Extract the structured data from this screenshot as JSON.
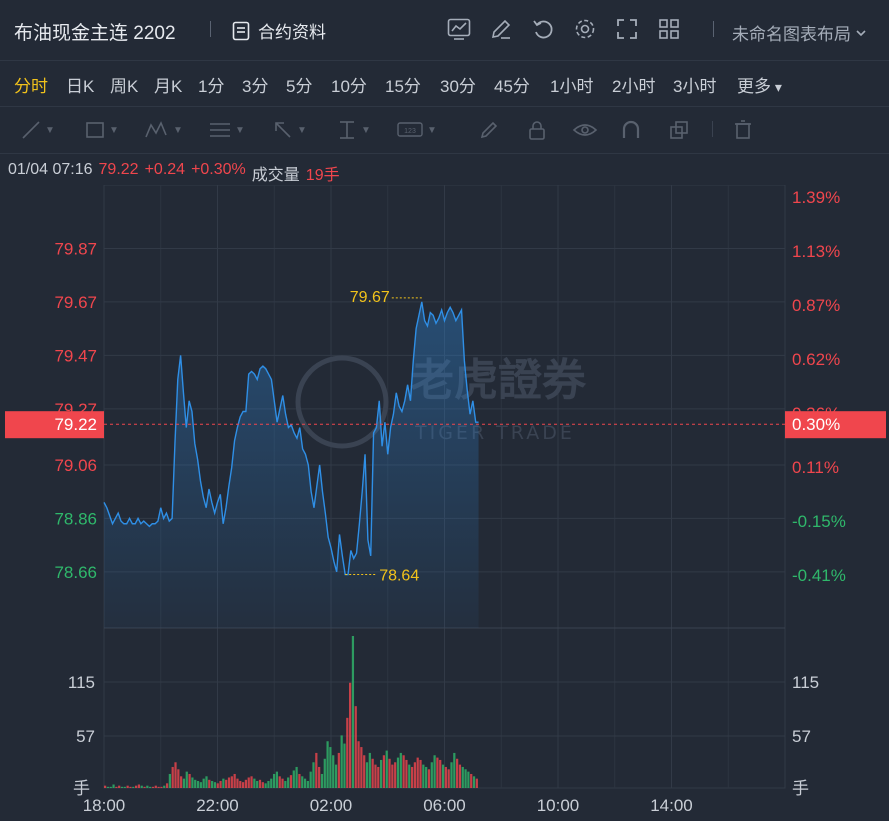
{
  "header": {
    "instrument_title": "布油现金主连 2202",
    "contract_info": "合约资料",
    "layout_name": "未命名图表布局"
  },
  "periods": [
    {
      "label": "分时",
      "active": true
    },
    {
      "label": "日K",
      "active": false
    },
    {
      "label": "周K",
      "active": false
    },
    {
      "label": "月K",
      "active": false
    },
    {
      "label": "1分",
      "active": false
    },
    {
      "label": "3分",
      "active": false
    },
    {
      "label": "5分",
      "active": false
    },
    {
      "label": "10分",
      "active": false
    },
    {
      "label": "15分",
      "active": false
    },
    {
      "label": "30分",
      "active": false
    },
    {
      "label": "45分",
      "active": false
    },
    {
      "label": "1小时",
      "active": false
    },
    {
      "label": "2小时",
      "active": false
    },
    {
      "label": "3小时",
      "active": false
    },
    {
      "label": "更多",
      "active": false
    }
  ],
  "info": {
    "datetime": "01/04 07:16",
    "price": "79.22",
    "change": "+0.24",
    "change_pct": "+0.30%",
    "volume_label": "成交量",
    "volume": "19手"
  },
  "watermark": {
    "cn": "老虎證券",
    "en": "TIGER TRADE"
  },
  "colors": {
    "up": "#f0464d",
    "down": "#2fb86b",
    "line": "#2f8fe6",
    "marker": "#f1c21b",
    "bg": "#232a36"
  },
  "chart_data": {
    "type": "line",
    "left_axis": {
      "ticks": [
        "79.87",
        "79.67",
        "79.47",
        "79.27",
        "79.06",
        "78.86",
        "78.66"
      ]
    },
    "right_axis": {
      "ticks": [
        "1.39%",
        "1.13%",
        "0.87%",
        "0.62%",
        "0.36%",
        "0.11%",
        "-0.15%",
        "-0.41%"
      ]
    },
    "x_ticks": [
      "18:00",
      "22:00",
      "02:00",
      "06:00",
      "10:00",
      "14:00"
    ],
    "price_tag_left": "79.22",
    "price_tag_right": "0.30%",
    "high_label": "79.67",
    "low_label": "78.64",
    "volume_axis": {
      "ticks": [
        "115",
        "57"
      ],
      "unit": "手"
    },
    "ylim": [
      78.45,
      80.07
    ],
    "prev_close": 78.98,
    "series": [
      {
        "x": [
          0,
          0.1,
          0.2,
          0.3,
          0.4,
          0.5,
          0.6,
          0.7,
          0.8,
          0.9,
          1.0,
          1.1,
          1.2,
          1.3,
          1.4,
          1.5,
          1.6,
          1.7,
          1.8,
          1.9,
          2.0,
          2.1,
          2.2,
          2.3,
          2.4,
          2.5,
          2.6,
          2.7,
          2.8,
          2.9,
          3.0,
          3.1,
          3.2,
          3.3,
          3.4,
          3.5,
          3.6,
          3.7,
          3.8,
          3.9,
          4.0,
          4.1,
          4.2,
          4.3,
          4.4,
          4.5,
          4.6,
          4.7,
          4.8,
          4.9,
          5.0,
          5.1,
          5.2,
          5.3,
          5.4,
          5.5,
          5.6,
          5.7,
          5.8,
          5.9,
          6.0,
          6.1,
          6.2,
          6.3,
          6.4,
          6.5,
          6.6,
          6.7,
          6.8,
          6.9,
          7.0,
          7.1,
          7.2,
          7.3,
          7.4,
          7.5,
          7.6,
          7.7,
          7.8,
          7.9,
          8.0,
          8.1,
          8.2,
          8.3,
          8.4,
          8.5,
          8.6,
          8.7,
          8.8,
          8.9,
          9.0,
          9.1,
          9.2,
          9.3,
          9.4,
          9.5,
          9.6,
          9.7,
          9.8,
          9.9,
          10.0,
          10.1,
          10.2,
          10.3,
          10.4,
          10.5,
          10.6,
          10.7,
          10.8,
          10.9,
          11.0,
          11.1,
          11.2,
          11.3,
          11.4,
          11.5,
          11.6,
          11.7,
          11.8,
          11.9,
          12.0,
          12.1,
          12.2,
          12.3,
          12.4,
          12.5,
          12.6,
          12.7,
          12.8,
          12.9,
          13.0,
          13.1,
          13.2
        ],
        "values": [
          78.92,
          78.9,
          78.87,
          78.84,
          78.86,
          78.88,
          78.85,
          78.84,
          78.84,
          78.86,
          78.84,
          78.84,
          78.86,
          78.84,
          78.85,
          78.84,
          78.83,
          78.84,
          78.84,
          78.85,
          78.9,
          78.86,
          78.88,
          78.85,
          78.86,
          79.14,
          79.38,
          79.47,
          79.33,
          79.2,
          79.3,
          79.26,
          79.14,
          79.08,
          79.0,
          78.94,
          78.9,
          78.97,
          78.92,
          78.88,
          78.92,
          78.95,
          78.84,
          78.9,
          78.98,
          79.05,
          79.15,
          79.2,
          79.24,
          79.26,
          79.26,
          79.4,
          79.41,
          79.4,
          79.38,
          79.42,
          79.43,
          79.42,
          79.4,
          79.38,
          79.3,
          79.22,
          79.27,
          79.32,
          79.25,
          79.2,
          79.21,
          79.18,
          79.16,
          79.2,
          79.12,
          79.1,
          79.06,
          78.96,
          78.9,
          78.98,
          79.06,
          78.96,
          78.88,
          78.79,
          78.75,
          78.7,
          78.66,
          78.8,
          78.72,
          78.65,
          78.65,
          78.74,
          78.71,
          78.73,
          78.84,
          78.96,
          79.1,
          78.78,
          78.72,
          79.18,
          79.2,
          79.3,
          79.13,
          79.22,
          79.1,
          79.2,
          79.25,
          79.33,
          79.28,
          79.26,
          79.3,
          79.36,
          79.3,
          79.45,
          79.57,
          79.62,
          79.67,
          79.6,
          79.58,
          79.63,
          79.62,
          79.59,
          79.61,
          79.64,
          79.6,
          79.63,
          79.65,
          79.63,
          79.6,
          79.62,
          79.64,
          79.45,
          79.34,
          79.25,
          79.3,
          79.22,
          79.22
        ]
      }
    ],
    "volume": [
      2,
      1,
      1,
      3,
      1,
      2,
      1,
      1,
      2,
      1,
      1,
      2,
      3,
      2,
      1,
      2,
      1,
      1,
      2,
      1,
      1,
      2,
      4,
      12,
      18,
      22,
      16,
      10,
      8,
      14,
      12,
      9,
      7,
      6,
      5,
      8,
      10,
      7,
      6,
      5,
      4,
      6,
      8,
      7,
      9,
      10,
      12,
      8,
      6,
      5,
      7,
      9,
      10,
      8,
      6,
      7,
      5,
      4,
      6,
      8,
      12,
      14,
      10,
      8,
      6,
      9,
      11,
      15,
      18,
      12,
      10,
      8,
      6,
      14,
      22,
      30,
      18,
      12,
      25,
      40,
      35,
      28,
      20,
      30,
      45,
      38,
      60,
      90,
      130,
      70,
      40,
      35,
      28,
      22,
      30,
      25,
      20,
      18,
      24,
      28,
      32,
      25,
      20,
      22,
      26,
      30,
      28,
      24,
      20,
      18,
      22,
      26,
      24,
      20,
      18,
      16,
      22,
      28,
      26,
      24,
      20,
      18,
      16,
      22,
      30,
      25,
      20,
      18,
      16,
      14,
      12,
      10,
      8
    ]
  }
}
